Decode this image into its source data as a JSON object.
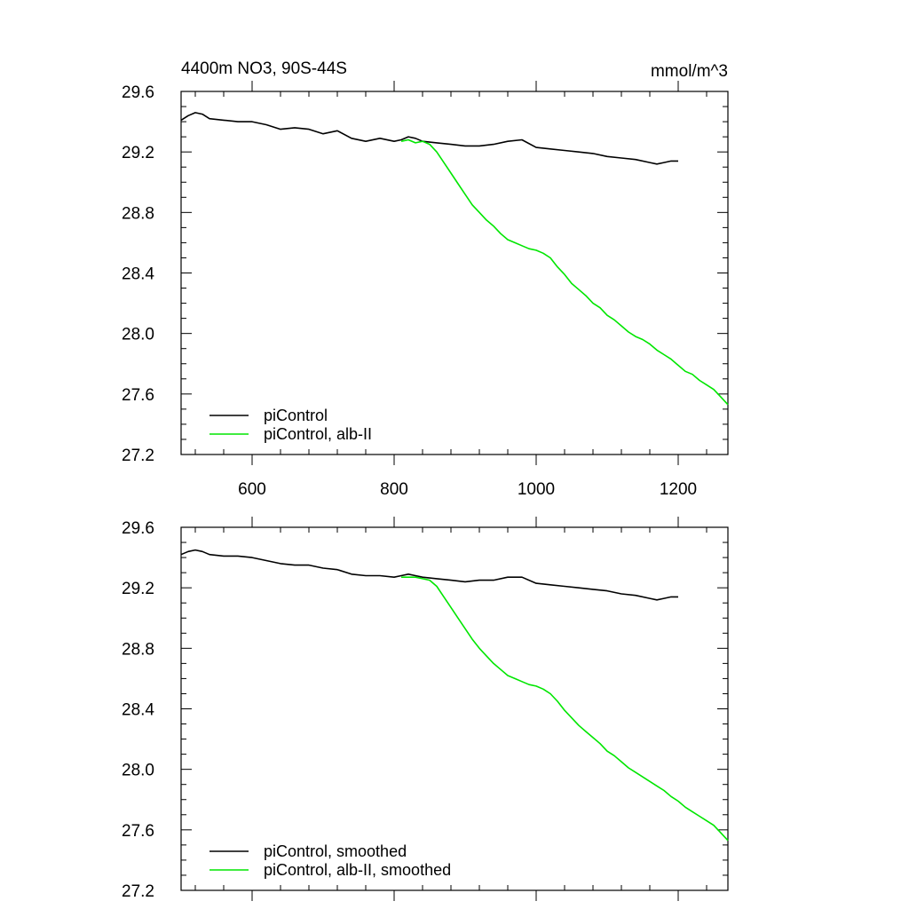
{
  "figure": {
    "title_left": "4400m NO3, 90S-44S",
    "title_right": "mmol/m^3"
  },
  "chart_data": [
    {
      "type": "line",
      "panel": "top",
      "title": "4400m NO3, 90S-44S",
      "units": "mmol/m^3",
      "xlim": [
        500,
        1270
      ],
      "ylim": [
        27.2,
        29.6
      ],
      "xticks": [
        600,
        800,
        1000,
        1200
      ],
      "xtick_labels": [
        "600",
        "800",
        "1000",
        "1200"
      ],
      "yticks": [
        27.2,
        27.6,
        28.0,
        28.4,
        28.8,
        29.2,
        29.6
      ],
      "ytick_labels": [
        "27.2",
        "27.6",
        "28.0",
        "28.4",
        "28.8",
        "29.2",
        "29.6"
      ],
      "grid": false,
      "legend_position": "bottom-left",
      "series": [
        {
          "name": "piControl",
          "color": "#000000",
          "smooth": false,
          "x": [
            500,
            510,
            520,
            530,
            540,
            560,
            580,
            600,
            620,
            640,
            660,
            680,
            700,
            720,
            740,
            760,
            780,
            800,
            810,
            820,
            830,
            840,
            860,
            880,
            900,
            920,
            940,
            960,
            980,
            1000,
            1020,
            1040,
            1060,
            1080,
            1100,
            1120,
            1140,
            1160,
            1170,
            1180,
            1190,
            1200
          ],
          "y": [
            29.41,
            29.44,
            29.46,
            29.45,
            29.42,
            29.41,
            29.4,
            29.4,
            29.38,
            29.35,
            29.36,
            29.35,
            29.32,
            29.34,
            29.29,
            29.27,
            29.29,
            29.27,
            29.28,
            29.3,
            29.29,
            29.27,
            29.26,
            29.25,
            29.24,
            29.24,
            29.25,
            29.27,
            29.28,
            29.23,
            29.22,
            29.21,
            29.2,
            29.19,
            29.17,
            29.16,
            29.15,
            29.13,
            29.12,
            29.13,
            29.14,
            29.14
          ]
        },
        {
          "name": "piControl, alb-II",
          "color": "#00e600",
          "smooth": false,
          "x": [
            810,
            820,
            830,
            840,
            850,
            860,
            870,
            880,
            890,
            900,
            910,
            920,
            930,
            940,
            950,
            960,
            970,
            980,
            990,
            1000,
            1010,
            1020,
            1030,
            1040,
            1050,
            1060,
            1070,
            1080,
            1090,
            1100,
            1110,
            1120,
            1130,
            1140,
            1150,
            1160,
            1170,
            1180,
            1190,
            1200,
            1210,
            1220,
            1230,
            1240,
            1250,
            1260,
            1270
          ],
          "y": [
            29.27,
            29.28,
            29.26,
            29.27,
            29.25,
            29.2,
            29.13,
            29.06,
            28.99,
            28.92,
            28.85,
            28.8,
            28.75,
            28.71,
            28.66,
            28.62,
            28.6,
            28.58,
            28.56,
            28.55,
            28.53,
            28.5,
            28.44,
            28.39,
            28.33,
            28.29,
            28.25,
            28.2,
            28.17,
            28.12,
            28.09,
            28.05,
            28.01,
            27.98,
            27.96,
            27.93,
            27.89,
            27.86,
            27.83,
            27.79,
            27.75,
            27.73,
            27.69,
            27.66,
            27.63,
            27.58,
            27.53
          ]
        }
      ]
    },
    {
      "type": "line",
      "panel": "bottom",
      "xlim": [
        500,
        1270
      ],
      "ylim": [
        27.2,
        29.6
      ],
      "xticks": [
        600,
        800,
        1000,
        1200
      ],
      "yticks": [
        27.2,
        27.6,
        28.0,
        28.4,
        28.8,
        29.2,
        29.6
      ],
      "ytick_labels": [
        "27.2",
        "27.6",
        "28.0",
        "28.4",
        "28.8",
        "29.2",
        "29.6"
      ],
      "grid": false,
      "legend_position": "bottom-left",
      "series": [
        {
          "name": "piControl, smoothed",
          "color": "#000000",
          "smooth": true,
          "x": [
            500,
            510,
            520,
            530,
            540,
            560,
            580,
            600,
            620,
            640,
            660,
            680,
            700,
            720,
            740,
            760,
            780,
            800,
            810,
            820,
            830,
            840,
            860,
            880,
            900,
            920,
            940,
            960,
            980,
            1000,
            1020,
            1040,
            1060,
            1080,
            1100,
            1120,
            1140,
            1160,
            1170,
            1180,
            1190,
            1200
          ],
          "y": [
            29.42,
            29.44,
            29.45,
            29.44,
            29.42,
            29.41,
            29.41,
            29.4,
            29.38,
            29.36,
            29.35,
            29.35,
            29.33,
            29.32,
            29.29,
            29.28,
            29.28,
            29.27,
            29.28,
            29.29,
            29.28,
            29.27,
            29.26,
            29.25,
            29.24,
            29.25,
            29.25,
            29.27,
            29.27,
            29.23,
            29.22,
            29.21,
            29.2,
            29.19,
            29.18,
            29.16,
            29.15,
            29.13,
            29.12,
            29.13,
            29.14,
            29.14
          ]
        },
        {
          "name": "piControl, alb-II, smoothed",
          "color": "#00e600",
          "smooth": true,
          "x": [
            810,
            820,
            830,
            840,
            850,
            860,
            870,
            880,
            890,
            900,
            910,
            920,
            930,
            940,
            950,
            960,
            970,
            980,
            990,
            1000,
            1010,
            1020,
            1030,
            1040,
            1050,
            1060,
            1070,
            1080,
            1090,
            1100,
            1110,
            1120,
            1130,
            1140,
            1150,
            1160,
            1170,
            1180,
            1190,
            1200,
            1210,
            1220,
            1230,
            1240,
            1250,
            1260,
            1270
          ],
          "y": [
            29.27,
            29.27,
            29.27,
            29.26,
            29.25,
            29.21,
            29.14,
            29.07,
            29.0,
            28.93,
            28.86,
            28.8,
            28.75,
            28.7,
            28.66,
            28.62,
            28.6,
            28.58,
            28.56,
            28.55,
            28.53,
            28.5,
            28.45,
            28.39,
            28.34,
            28.29,
            28.25,
            28.21,
            28.17,
            28.12,
            28.09,
            28.05,
            28.01,
            27.98,
            27.95,
            27.92,
            27.89,
            27.86,
            27.82,
            27.79,
            27.75,
            27.72,
            27.69,
            27.66,
            27.63,
            27.58,
            27.53
          ]
        }
      ]
    }
  ]
}
